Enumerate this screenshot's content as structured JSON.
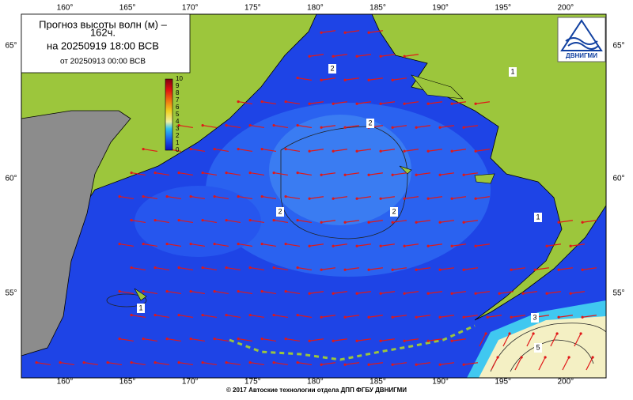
{
  "title": {
    "line1": "Прогноз высоты волн (м) –",
    "line2": "162ч.",
    "line3": "на 20250919 18:00 ВСВ",
    "line4": "от 20250913 00:00 ВСВ"
  },
  "colorbar": {
    "ticks": [
      0,
      1,
      2,
      3,
      4,
      5,
      6,
      7,
      8,
      9,
      10
    ]
  },
  "longitudes": [
    "160°",
    "165°",
    "170°",
    "175°",
    "180°",
    "185°",
    "190°",
    "195°",
    "200°"
  ],
  "latitudes": [
    "65°",
    "60°",
    "55°"
  ],
  "contour_labels": [
    "2",
    "2",
    "2",
    "2",
    "1",
    "1",
    "1",
    "3",
    "5"
  ],
  "logo": "ДВНИГМИ",
  "footer": "© 2017 Автоские технологии отдела ДПП ФГБУ ДВНИГМИ"
}
